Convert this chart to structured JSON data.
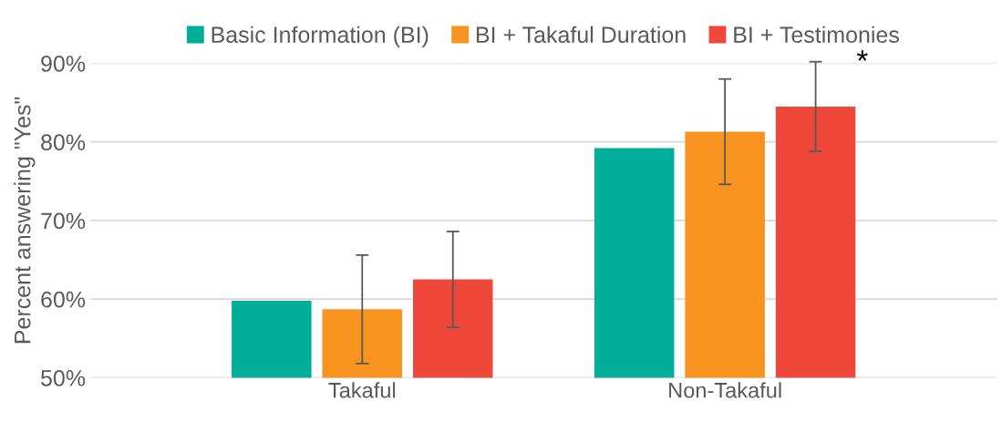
{
  "chart_data": {
    "type": "bar",
    "categories": [
      "Takaful",
      "Non-Takaful"
    ],
    "ylabel": "Percent answering \"Yes\"",
    "series": [
      {
        "name": "Basic Information (BI)",
        "color": "#00ae9a",
        "values": [
          59.8,
          79.2
        ]
      },
      {
        "name": "BI + Takaful Duration",
        "color": "#f7931e",
        "values": [
          58.7,
          81.3
        ],
        "errors": [
          [
            51.8,
            65.6
          ],
          [
            74.6,
            88.0
          ]
        ]
      },
      {
        "name": "BI + Testimonies",
        "color": "#ef473a",
        "values": [
          62.5,
          84.5
        ],
        "errors": [
          [
            56.4,
            68.6
          ],
          [
            78.8,
            90.2
          ]
        ]
      }
    ],
    "ylim": [
      50,
      90
    ],
    "yticks": [
      {
        "value": 50,
        "label": "50%"
      },
      {
        "value": 60,
        "label": "60%"
      },
      {
        "value": 70,
        "label": "70%"
      },
      {
        "value": 80,
        "label": "80%"
      },
      {
        "value": 90,
        "label": "90%"
      }
    ],
    "grid": "y",
    "legend": "top",
    "annotations": [
      "*"
    ]
  }
}
